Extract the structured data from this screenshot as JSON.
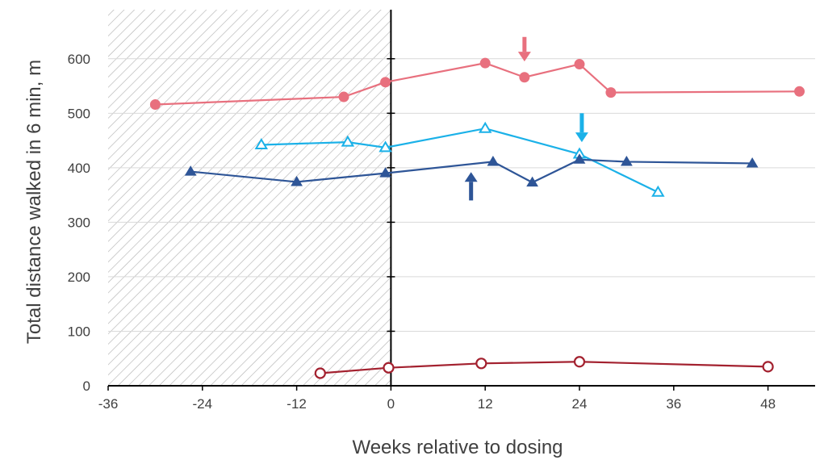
{
  "chart_data": {
    "type": "line",
    "xlabel": "Weeks relative to dosing",
    "ylabel": "Total distance walked in 6 min, m",
    "xlim": [
      -36,
      54
    ],
    "ylim": [
      0,
      690
    ],
    "x_ticks": [
      -36,
      -24,
      -12,
      0,
      12,
      24,
      36,
      48
    ],
    "y_ticks": [
      0,
      100,
      200,
      300,
      400,
      500,
      600
    ],
    "x_tick_labels": [
      "-36",
      "-24",
      "-12",
      "0",
      "12",
      "24",
      "36",
      "48"
    ],
    "y_tick_labels": [
      "0",
      "100",
      "200",
      "300",
      "400",
      "500",
      "600"
    ],
    "grid": "horizontal",
    "pre_dosing_region": {
      "x_from": -36,
      "x_to": 0,
      "style": "diagonal hatch"
    },
    "legend": "none",
    "series": [
      {
        "color": "#e8707e",
        "marker": "filled-circle",
        "x": [
          -30,
          -6,
          -0.7,
          12,
          17,
          24,
          28,
          52
        ],
        "y": [
          516,
          530,
          557,
          592,
          566,
          590,
          538,
          540
        ]
      },
      {
        "color": "#1bb1e8",
        "marker": "open-triangle",
        "x": [
          -16.5,
          -5.5,
          -0.7,
          12,
          24,
          34
        ],
        "y": [
          442,
          447,
          437,
          472,
          425,
          355
        ]
      },
      {
        "color": "#2e5597",
        "marker": "filled-triangle",
        "x": [
          -25.5,
          -12,
          -0.7,
          13,
          18,
          24,
          30,
          46
        ],
        "y": [
          393,
          374,
          390,
          411,
          373,
          415,
          411,
          408
        ]
      },
      {
        "color": "#a3212f",
        "marker": "open-circle",
        "x": [
          -9,
          -0.3,
          11.5,
          24,
          48
        ],
        "y": [
          23,
          33,
          41,
          44,
          35
        ]
      }
    ],
    "annotations": [
      {
        "type": "arrow-down",
        "x": 17,
        "y_from": 640,
        "y_to": 595,
        "color": "#e8707e"
      },
      {
        "type": "arrow-down",
        "x": 24.3,
        "y_from": 500,
        "y_to": 447,
        "color": "#1bb1e8"
      },
      {
        "type": "arrow-up",
        "x": 10.2,
        "y_from": 340,
        "y_to": 392,
        "color": "#2e5597"
      }
    ]
  }
}
